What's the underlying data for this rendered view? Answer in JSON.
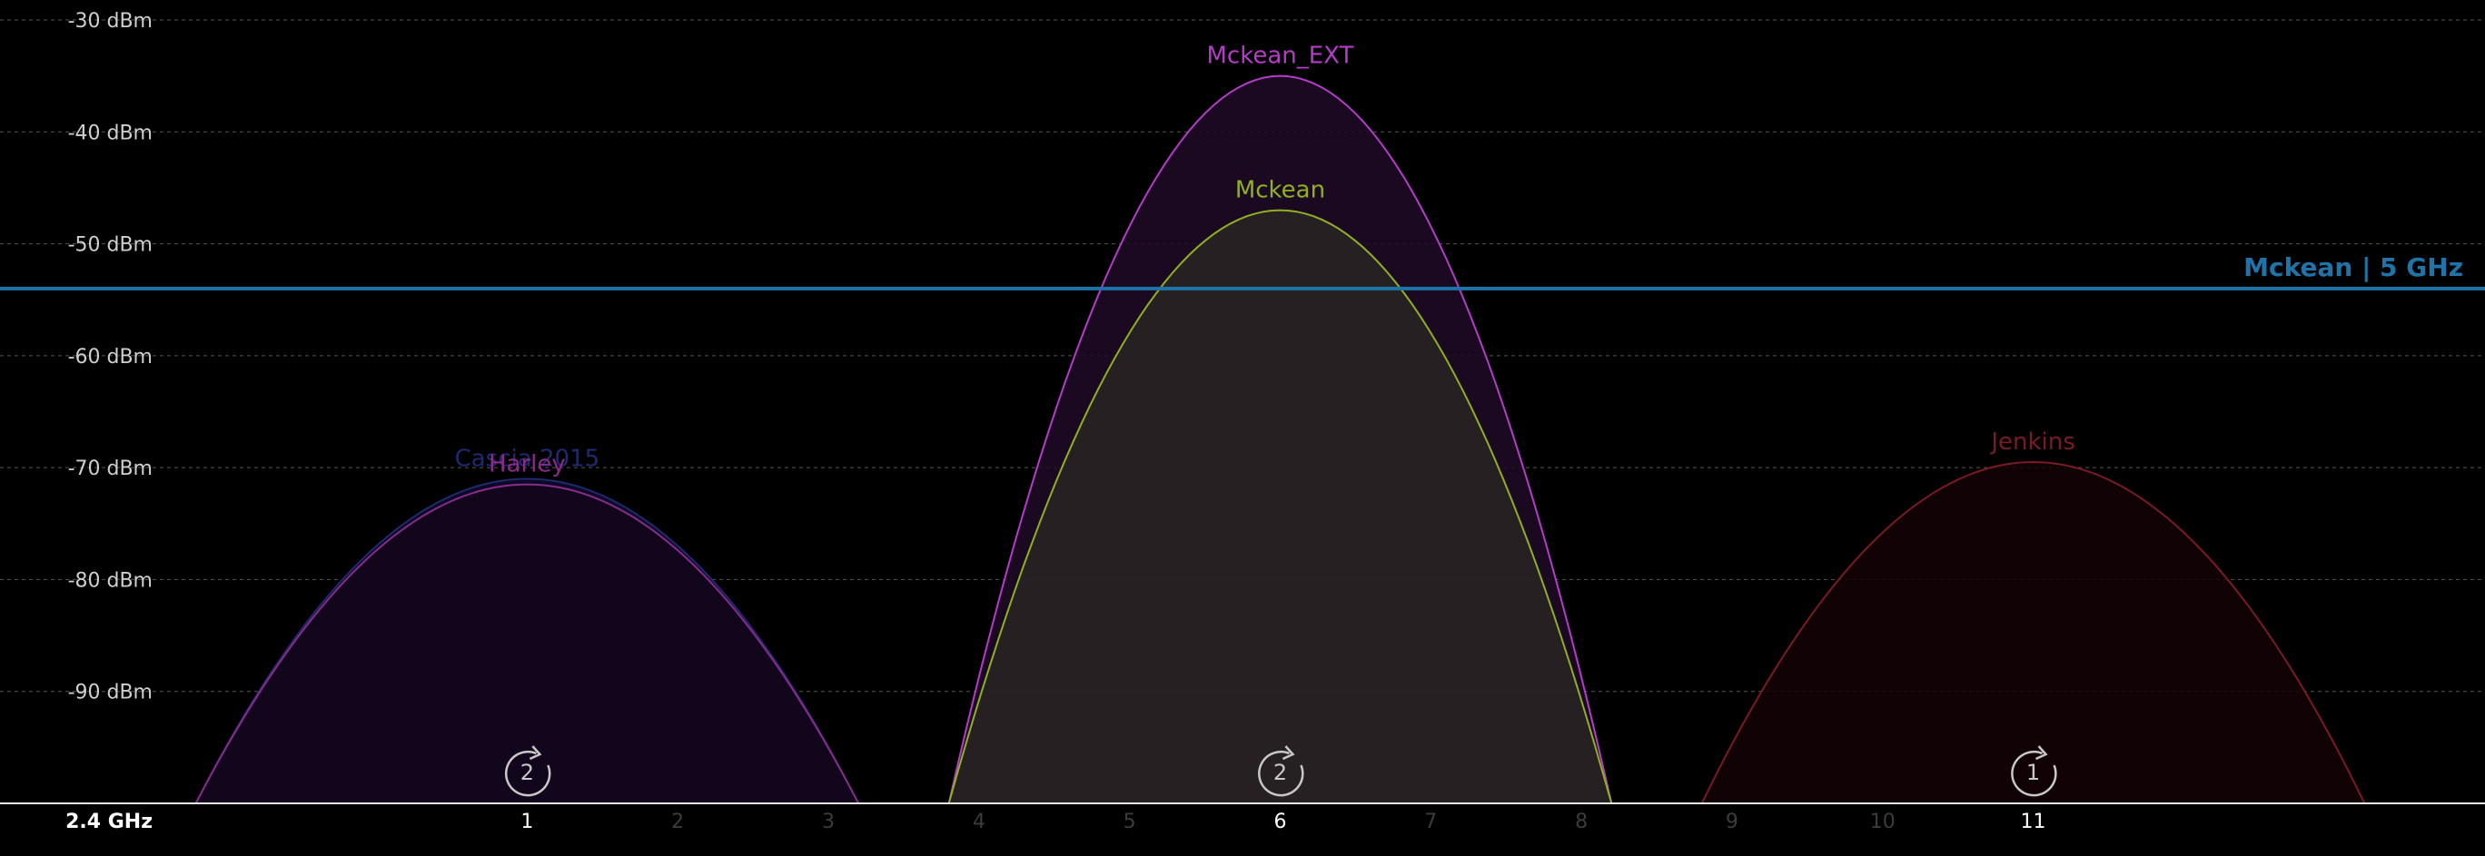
{
  "chart_data": {
    "type": "area",
    "band_label": "2.4 GHz",
    "y_unit": "dBm",
    "ylim": [
      -100,
      -30
    ],
    "xlim": [
      -2.5,
      14.0
    ],
    "y_ticks": [
      {
        "value": -30,
        "label": "-30 dBm"
      },
      {
        "value": -40,
        "label": "-40 dBm"
      },
      {
        "value": -50,
        "label": "-50 dBm"
      },
      {
        "value": -60,
        "label": "-60 dBm"
      },
      {
        "value": -70,
        "label": "-70 dBm"
      },
      {
        "value": -80,
        "label": "-80 dBm"
      },
      {
        "value": -90,
        "label": "-90 dBm"
      }
    ],
    "x_ticks": [
      {
        "value": 1,
        "label": "1",
        "active": true
      },
      {
        "value": 2,
        "label": "2",
        "active": false
      },
      {
        "value": 3,
        "label": "3",
        "active": false
      },
      {
        "value": 4,
        "label": "4",
        "active": false
      },
      {
        "value": 5,
        "label": "5",
        "active": false
      },
      {
        "value": 6,
        "label": "6",
        "active": true
      },
      {
        "value": 7,
        "label": "7",
        "active": false
      },
      {
        "value": 8,
        "label": "8",
        "active": false
      },
      {
        "value": 9,
        "label": "9",
        "active": false
      },
      {
        "value": 10,
        "label": "10",
        "active": false
      },
      {
        "value": 11,
        "label": "11",
        "active": true
      }
    ],
    "grid": true,
    "reference_line": {
      "name": "Mckean | 5 GHz",
      "value": -54,
      "color": "#1e73a8"
    },
    "series": [
      {
        "name": "Cascia 2015",
        "channel": 1,
        "signal": -71,
        "half_width": 2.2,
        "stroke": "#1f2a6e",
        "fill": "#0d0a2a"
      },
      {
        "name": "Harley",
        "channel": 1,
        "signal": -71.5,
        "half_width": 2.2,
        "stroke": "#8a2a8a",
        "fill": "#14061c"
      },
      {
        "name": "Mckean_EXT",
        "channel": 6,
        "signal": -35,
        "half_width": 2.2,
        "stroke": "#b43cc8",
        "fill": "#1e0a26"
      },
      {
        "name": "Mckean",
        "channel": 6,
        "signal": -47,
        "half_width": 2.2,
        "stroke": "#8fb020",
        "fill": "#2a2424"
      },
      {
        "name": "Jenkins",
        "channel": 11,
        "signal": -69.5,
        "half_width": 2.2,
        "stroke": "#7a1a24",
        "fill": "#140406"
      }
    ],
    "channel_counts": [
      {
        "channel": 1,
        "count": "2"
      },
      {
        "channel": 6,
        "count": "2"
      },
      {
        "channel": 11,
        "count": "1"
      }
    ]
  }
}
